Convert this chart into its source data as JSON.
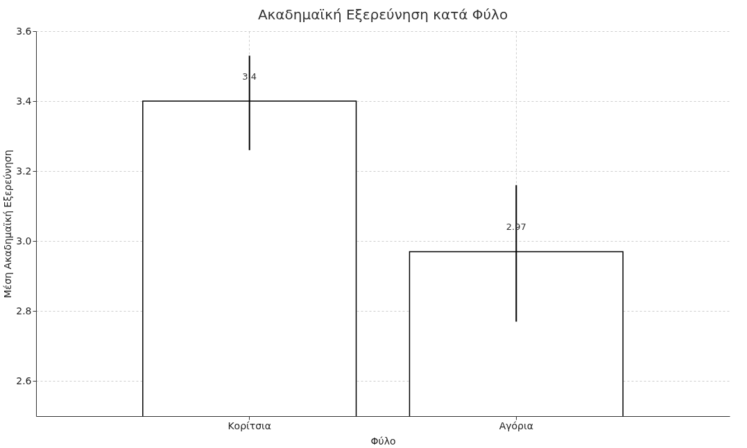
{
  "chart_data": {
    "type": "bar",
    "title": "Ακαδημαϊκή Εξερεύνηση κατά Φύλο",
    "xlabel": "Φύλο",
    "ylabel": "Μέση Ακαδημαϊκή Εξερεύνηση",
    "categories": [
      "Κορίτσια",
      "Αγόρια"
    ],
    "values": [
      3.4,
      2.97
    ],
    "errors": [
      [
        3.26,
        3.53
      ],
      [
        2.77,
        3.16
      ]
    ],
    "color": "#ffffff",
    "ylim": [
      2.5,
      3.6
    ],
    "yticks": [
      2.6,
      2.8,
      {
        "value": 3.0,
        "label": "3.0"
      },
      3.2,
      3.4,
      3.6
    ],
    "grid": true,
    "data_labels": true
  }
}
